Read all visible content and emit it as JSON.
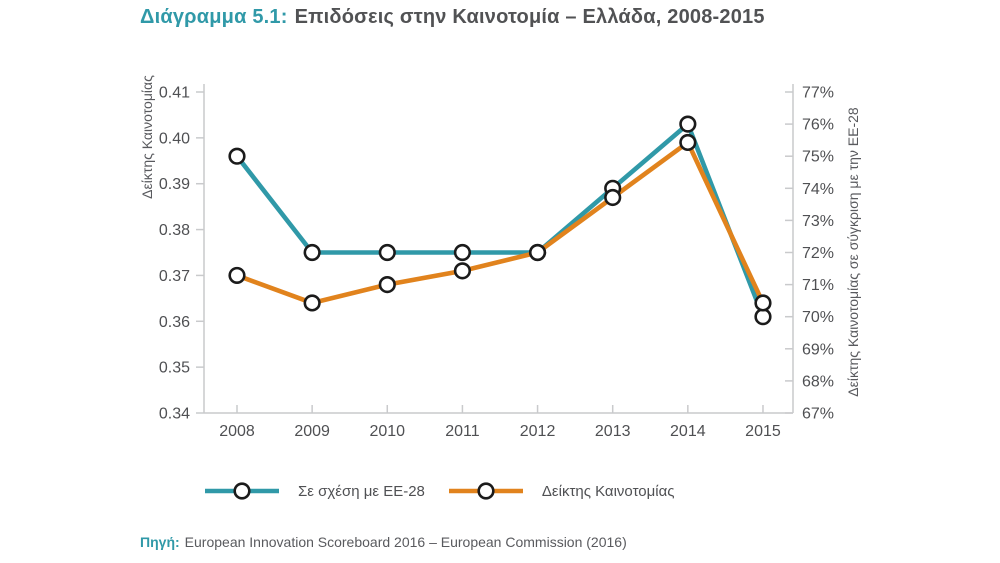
{
  "title": {
    "prefix": "Διάγραμμα 5.1:",
    "text": "Επιδόσεις στην Καινοτομία – Ελλάδα, 2008-2015"
  },
  "source": {
    "label": "Πηγή:",
    "text": "European Innovation Scoreboard 2016 – European Commission (2016)"
  },
  "colors": {
    "teal": "#3099A8",
    "orange": "#E1831D",
    "marker_stroke": "#1B1B1B",
    "axis_line": "#C9CACC",
    "tick_text": "#4F5053",
    "axis_text": "#595A5E",
    "title_text": "#515254"
  },
  "chart_data": {
    "type": "line",
    "x_labels": [
      "2008",
      "2009",
      "2010",
      "2011",
      "2012",
      "2013",
      "2014",
      "2015"
    ],
    "left_axis": {
      "label": "Δείκτης Καινοτομίας",
      "min": 0.34,
      "max": 0.41,
      "tick_labels": [
        "0.41",
        "0.40",
        "0.39",
        "0.38",
        "0.37",
        "0.36",
        "0.35",
        "0.34"
      ]
    },
    "right_axis": {
      "label": "Δείκτης Καινοτομίας σε σύγκριση με την ΕΕ-28",
      "min": 67,
      "max": 77,
      "tick_labels": [
        "77%",
        "76%",
        "75%",
        "74%",
        "73%",
        "72%",
        "71%",
        "70%",
        "69%",
        "68%",
        "67%"
      ]
    },
    "series": [
      {
        "name": "Σε σχέση με ΕΕ-28",
        "axis": "right",
        "color_key": "teal",
        "unit": "%",
        "values": [
          75,
          72,
          72,
          72,
          72,
          74,
          76,
          70
        ]
      },
      {
        "name": "Δείκτης Καινοτομίας",
        "axis": "left",
        "color_key": "orange",
        "unit": "index",
        "values": [
          0.37,
          0.364,
          0.368,
          0.371,
          0.375,
          0.387,
          0.399,
          0.364
        ]
      }
    ],
    "legend_position": "bottom",
    "grid": false
  }
}
